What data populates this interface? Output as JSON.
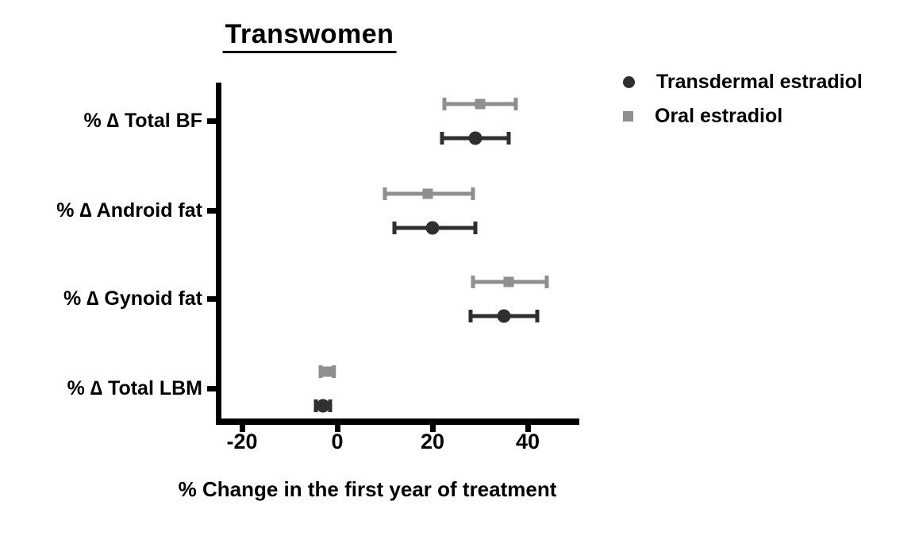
{
  "chart_data": {
    "type": "scatter",
    "variant": "horizontal dot plot with error bars (forest-style)",
    "title": "Transwomen",
    "xlabel": "% Change in the first year of treatment",
    "ylabel": "",
    "categories": [
      "% ∆ Total BF",
      "% ∆ Android fat",
      "% ∆ Gynoid fat",
      "% ∆ Total LBM"
    ],
    "xlim": [
      -25,
      50
    ],
    "xticks": [
      -20,
      0,
      20,
      40
    ],
    "grid": false,
    "legend_position": "top-right outside plot",
    "axis_color": "#000000",
    "series": [
      {
        "name": "Transdermal estradiol",
        "marker": "circle",
        "color": "#2f2f2f",
        "values": [
          29,
          20,
          35,
          -3
        ],
        "ci_low": [
          22,
          12,
          28,
          -4.5
        ],
        "ci_high": [
          36,
          29,
          42,
          -1.5
        ]
      },
      {
        "name": "Oral estradiol",
        "marker": "square",
        "color": "#8f8f8f",
        "values": [
          30,
          19,
          36,
          -2
        ],
        "ci_low": [
          22.5,
          10,
          28.5,
          -3.5
        ],
        "ci_high": [
          37.5,
          28.5,
          44,
          -0.7
        ]
      }
    ]
  }
}
